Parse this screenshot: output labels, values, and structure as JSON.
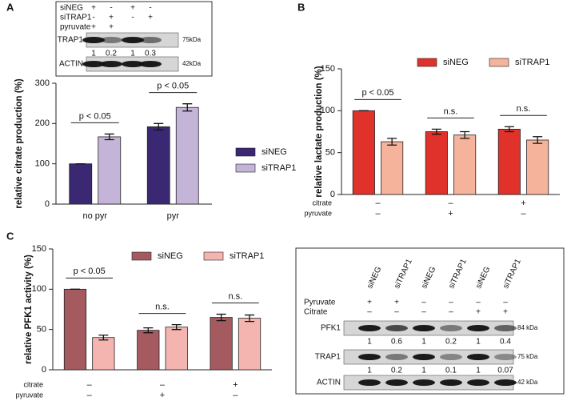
{
  "chart_data": [
    {
      "type": "bar",
      "panel": "A",
      "ylabel": "relative citrate production (%)",
      "categories": [
        "no pyr",
        "pyr"
      ],
      "series": [
        {
          "name": "siNEG",
          "color": "#3b2873",
          "values": [
            100,
            192
          ],
          "errors": [
            0,
            8
          ]
        },
        {
          "name": "siTRAP1",
          "color": "#c3b4d8",
          "values": [
            167,
            240
          ],
          "errors": [
            7,
            9
          ]
        }
      ],
      "annotations": [
        "p < 0.05",
        "p < 0.05"
      ],
      "ylim": [
        0,
        300
      ],
      "yticks": [
        0,
        100,
        200,
        300
      ],
      "legend": "right"
    },
    {
      "type": "bar",
      "panel": "B",
      "ylabel": "relative lactate production (%)",
      "categories": [
        null,
        null,
        null
      ],
      "conditions": [
        {
          "name": "citrate",
          "values": [
            "–",
            "–",
            "+"
          ]
        },
        {
          "name": "pyruvate",
          "values": [
            "–",
            "+",
            "–"
          ]
        }
      ],
      "series": [
        {
          "name": "siNEG",
          "color": "#e1312b",
          "values": [
            100,
            75,
            78
          ],
          "errors": [
            0,
            3,
            3
          ]
        },
        {
          "name": "siTRAP1",
          "color": "#f5b39b",
          "values": [
            63,
            71,
            65
          ],
          "errors": [
            4,
            4,
            4
          ]
        }
      ],
      "annotations": [
        "p < 0.05",
        "n.s.",
        "n.s."
      ],
      "ylim": [
        0,
        150
      ],
      "yticks": [
        0,
        50,
        100,
        150
      ],
      "legend": "top"
    },
    {
      "type": "bar",
      "panel": "C",
      "ylabel": "relative PFK1 activity (%)",
      "categories": [
        null,
        null,
        null
      ],
      "conditions": [
        {
          "name": "citrate",
          "values": [
            "–",
            "–",
            "+"
          ]
        },
        {
          "name": "pyruvate",
          "values": [
            "–",
            "+",
            "–"
          ]
        }
      ],
      "series": [
        {
          "name": "siNEG",
          "color": "#a55a5f",
          "values": [
            100,
            49,
            65
          ],
          "errors": [
            0,
            3,
            4
          ]
        },
        {
          "name": "siTRAP1",
          "color": "#f4b5b1",
          "values": [
            40,
            53,
            64
          ],
          "errors": [
            3,
            3,
            4
          ]
        }
      ],
      "annotations": [
        "p < 0.05",
        "n.s.",
        "n.s."
      ],
      "ylim": [
        0,
        150
      ],
      "yticks": [
        0,
        50,
        100,
        150
      ],
      "legend": "top"
    }
  ],
  "blots": [
    {
      "conditions": [
        {
          "name": "siNEG",
          "values": [
            "+",
            "-",
            "+",
            "-"
          ]
        },
        {
          "name": "siTRAP1",
          "values": [
            "-",
            "+",
            "-",
            "+"
          ]
        },
        {
          "name": "pyruvate",
          "values": [
            "+",
            "+",
            null,
            null
          ]
        }
      ],
      "rows": [
        {
          "name": "TRAP1",
          "quant": [
            "1",
            "0.2",
            "1",
            "0.3"
          ],
          "size": "75kDa"
        },
        {
          "name": "ACTIN",
          "size": "42kDa"
        }
      ]
    },
    {
      "lanes": [
        "siNEG",
        "siTRAP1",
        "siNEG",
        "siTRAP1",
        "siNEG",
        "siTRAP1"
      ],
      "conditions": [
        {
          "name": "Pyruvate",
          "values": [
            "+",
            "+",
            "–",
            "–",
            "–",
            "–"
          ]
        },
        {
          "name": "Citrate",
          "values": [
            "–",
            "–",
            "–",
            "–",
            "+",
            "+"
          ]
        }
      ],
      "rows": [
        {
          "name": "PFK1",
          "quant": [
            "1",
            "0.6",
            "1",
            "0.2",
            "1",
            "0.4"
          ],
          "size": "84 kDa"
        },
        {
          "name": "TRAP1",
          "quant": [
            "1",
            "0.2",
            "1",
            "0.1",
            "1",
            "0.07"
          ],
          "size": "75 kDa"
        },
        {
          "name": "ACTIN",
          "size": "42 kDa"
        }
      ]
    }
  ]
}
